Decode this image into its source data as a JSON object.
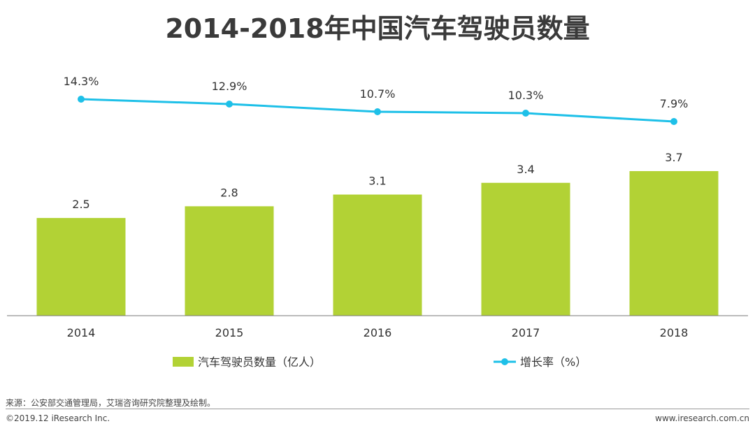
{
  "chart_data": {
    "type": "bar",
    "title": "2014-2018年中国汽车驾驶员数量",
    "categories": [
      "2014",
      "2015",
      "2016",
      "2017",
      "2018"
    ],
    "series": [
      {
        "name": "汽车驾驶员数量（亿人）",
        "type": "bar",
        "values": [
          2.5,
          2.8,
          3.1,
          3.4,
          3.7
        ],
        "labels": [
          "2.5",
          "2.8",
          "3.1",
          "3.4",
          "3.7"
        ],
        "color": "#b2d235"
      },
      {
        "name": "增长率（%）",
        "type": "line",
        "values": [
          14.3,
          12.9,
          10.7,
          10.3,
          7.9
        ],
        "labels": [
          "14.3%",
          "12.9%",
          "10.7%",
          "10.3%",
          "7.9%"
        ],
        "color": "#1ec0e8"
      }
    ],
    "ylim": [
      0,
      3.7
    ],
    "grid": false,
    "legend": "bottom"
  },
  "footer": {
    "source": "来源：公安部交通管理局，艾瑞咨询研究院整理及绘制。",
    "copyright": "©2019.12 iResearch Inc.",
    "website": "www.iresearch.com.cn"
  }
}
